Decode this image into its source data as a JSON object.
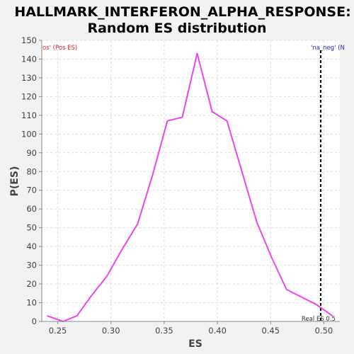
{
  "chart_data": {
    "type": "line",
    "title": [
      "HALLMARK_INTERFERON_ALPHA_RESPONSE:",
      "Random ES distribution"
    ],
    "xlabel": "ES",
    "ylabel": "P(ES)",
    "xlim": [
      0.235,
      0.515
    ],
    "ylim": [
      0,
      150
    ],
    "x_ticks": [
      0.25,
      0.3,
      0.35,
      0.4,
      0.45,
      0.5
    ],
    "y_ticks": [
      0,
      10,
      20,
      30,
      40,
      50,
      60,
      70,
      80,
      90,
      100,
      110,
      120,
      130,
      140,
      150
    ],
    "grid": true,
    "series": [
      {
        "color": "#ee44ee",
        "x": [
          0.24,
          0.255,
          0.268,
          0.282,
          0.296,
          0.311,
          0.325,
          0.339,
          0.353,
          0.367,
          0.381,
          0.395,
          0.409,
          0.423,
          0.437,
          0.451,
          0.465,
          0.479,
          0.493,
          0.508
        ],
        "y": [
          3,
          0,
          3,
          14,
          24,
          39,
          52,
          78,
          107,
          109,
          143,
          112,
          107,
          80,
          53,
          34,
          17,
          13,
          9,
          3
        ]
      }
    ],
    "reference_line": {
      "x": 0.497,
      "label": "Real ES 0.5",
      "style": "dashed",
      "color": "#000000"
    },
    "annotations": {
      "left": {
        "text": "os' (Pos ES)",
        "color": "#ee2222"
      },
      "right": {
        "text": "'na_neg' (N",
        "color": "#2222dd"
      }
    }
  }
}
